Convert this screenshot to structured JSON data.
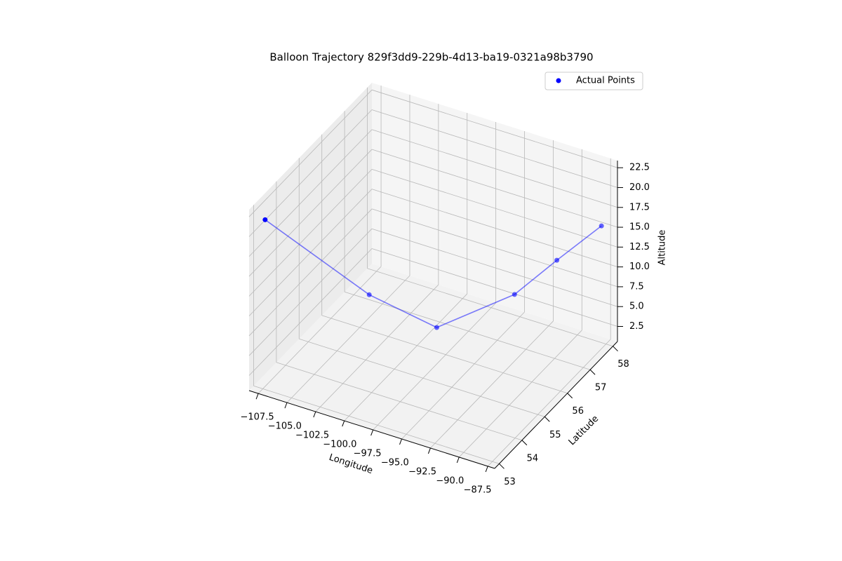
{
  "chart_data": {
    "type": "scatter3d",
    "title": "Balloon Trajectory 829f3dd9-229b-4d13-ba19-0321a98b3790",
    "xlabel": "Longitude",
    "ylabel": "Latitude",
    "zlabel": "Altitude",
    "series": [
      {
        "name": "Actual Points",
        "color": "blue",
        "x": [
          -107.3,
          -101.2,
          -97.3,
          -92.5,
          -90.4,
          -87.9
        ],
        "y": [
          53.0,
          54.5,
          55.5,
          56.5,
          57.3,
          58.0
        ],
        "z": [
          22.0,
          10.9,
          5.6,
          9.0,
          11.9,
          15.3
        ]
      }
    ],
    "line": true,
    "xlim": [
      -108.3,
      -86.9
    ],
    "ylim": [
      52.8,
      58.2
    ],
    "zlim": [
      0.6,
      23.4
    ],
    "xticks": [
      {
        "value": -107.5,
        "label": "−107.5"
      },
      {
        "value": -105,
        "label": "−105.0"
      },
      {
        "value": -102.5,
        "label": "−102.5"
      },
      {
        "value": -100,
        "label": "−100.0"
      },
      {
        "value": -97.5,
        "label": "−97.5"
      },
      {
        "value": -95,
        "label": "−95.0"
      },
      {
        "value": -92.5,
        "label": "−92.5"
      },
      {
        "value": -90,
        "label": "−90.0"
      },
      {
        "value": -87.5,
        "label": "−87.5"
      }
    ],
    "yticks": [
      53,
      54,
      55,
      56,
      57,
      58
    ],
    "zticks": [
      2.5,
      {
        "value": 5,
        "label": "5.0"
      },
      7.5,
      {
        "value": 10,
        "label": "10.0"
      },
      12.5,
      {
        "value": 15,
        "label": "15.0"
      },
      17.5,
      {
        "value": 20,
        "label": "20.0"
      },
      22.5
    ],
    "grid": true,
    "legend": "upper right"
  }
}
